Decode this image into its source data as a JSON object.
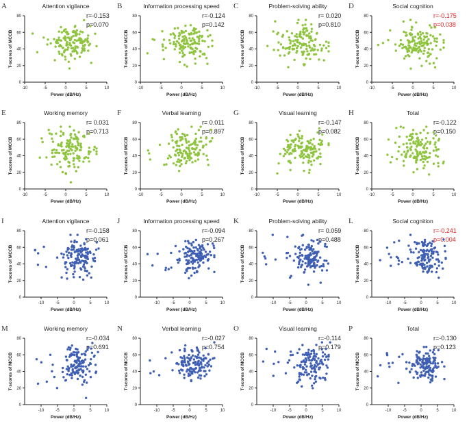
{
  "colors": {
    "green": "#8fc43f",
    "blue": "#3f5fb4",
    "text": "#222222",
    "significant": "#e02020"
  },
  "chart_data": [
    {
      "type": "scatter",
      "panel_label": "A",
      "title": "Attention vigilance",
      "stat_r": "r=-0.153",
      "stat_p": "p=0.070",
      "significant": false,
      "color": "green",
      "xlabel": "Power (dB/Hz)",
      "ylabel": "T-scores of MCCB",
      "xlim": [
        -10,
        10
      ],
      "ylim": [
        0,
        80
      ],
      "xticks": [
        -10,
        -5,
        0,
        5,
        10
      ],
      "yticks": [
        0,
        20,
        40,
        60,
        80
      ],
      "n_points": 140,
      "seed": 11
    },
    {
      "type": "scatter",
      "panel_label": "B",
      "title": "Information processing speed",
      "stat_r": "r=-0.124",
      "stat_p": "p=0.142",
      "significant": false,
      "color": "green",
      "xlabel": "Power (dB/Hz)",
      "ylabel": "T-scores of MCCB",
      "xlim": [
        -10,
        10
      ],
      "ylim": [
        0,
        80
      ],
      "xticks": [
        -10,
        -5,
        0,
        5,
        10
      ],
      "yticks": [
        0,
        20,
        40,
        60,
        80
      ],
      "n_points": 140,
      "seed": 12
    },
    {
      "type": "scatter",
      "panel_label": "C",
      "title": "Problem-solving ability",
      "stat_r": "r= 0.020",
      "stat_p": "p=0.810",
      "significant": false,
      "color": "green",
      "xlabel": "Power (dB/Hz)",
      "ylabel": "T-scores of MCCB",
      "xlim": [
        -10,
        10
      ],
      "ylim": [
        0,
        80
      ],
      "xticks": [
        -10,
        -5,
        0,
        5,
        10
      ],
      "yticks": [
        0,
        20,
        40,
        60,
        80
      ],
      "n_points": 140,
      "seed": 13
    },
    {
      "type": "scatter",
      "panel_label": "D",
      "title": "Social cognition",
      "stat_r": "r=-0.175",
      "stat_p": "p=0.038",
      "significant": true,
      "color": "green",
      "xlabel": "Power (dB/Hz)",
      "ylabel": "T-scores of MCCB",
      "xlim": [
        -10,
        10
      ],
      "ylim": [
        0,
        80
      ],
      "xticks": [
        -10,
        -5,
        0,
        5,
        10
      ],
      "yticks": [
        0,
        20,
        40,
        60,
        80
      ],
      "n_points": 140,
      "seed": 14
    },
    {
      "type": "scatter",
      "panel_label": "E",
      "title": "Working memory",
      "stat_r": "r= 0.031",
      "stat_p": "p=0.713",
      "significant": false,
      "color": "green",
      "xlabel": "Power (dB/Hz)",
      "ylabel": "T-scores of MCCB",
      "xlim": [
        -10,
        10
      ],
      "ylim": [
        0,
        80
      ],
      "xticks": [
        -10,
        -5,
        0,
        5,
        10
      ],
      "yticks": [
        0,
        20,
        40,
        60,
        80
      ],
      "n_points": 140,
      "seed": 15
    },
    {
      "type": "scatter",
      "panel_label": "F",
      "title": "Verbal learning",
      "stat_r": "r= 0.011",
      "stat_p": "p=0.897",
      "significant": false,
      "color": "green",
      "xlabel": "Power (dB/Hz)",
      "ylabel": "T-scores of MCCB",
      "xlim": [
        -10,
        10
      ],
      "ylim": [
        0,
        80
      ],
      "xticks": [
        -10,
        -5,
        0,
        5,
        10
      ],
      "yticks": [
        0,
        20,
        40,
        60,
        80
      ],
      "n_points": 140,
      "seed": 16
    },
    {
      "type": "scatter",
      "panel_label": "G",
      "title": "Visual learning",
      "stat_r": "r=-0.147",
      "stat_p": "p=0.082",
      "significant": false,
      "color": "green",
      "xlabel": "Power (dB/Hz)",
      "ylabel": "T-scores of MCCB",
      "xlim": [
        -10,
        10
      ],
      "ylim": [
        0,
        80
      ],
      "xticks": [
        -10,
        -5,
        0,
        5,
        10
      ],
      "yticks": [
        0,
        20,
        40,
        60,
        80
      ],
      "n_points": 140,
      "seed": 17
    },
    {
      "type": "scatter",
      "panel_label": "H",
      "title": "Total",
      "stat_r": "r=-0.122",
      "stat_p": "p=0.150",
      "significant": false,
      "color": "green",
      "xlabel": "Power (dB/Hz)",
      "ylabel": "T-scores of MCCB",
      "xlim": [
        -10,
        10
      ],
      "ylim": [
        0,
        80
      ],
      "xticks": [
        -10,
        -5,
        0,
        5,
        10
      ],
      "yticks": [
        0,
        20,
        40,
        60,
        80
      ],
      "n_points": 140,
      "seed": 18
    },
    {
      "type": "scatter",
      "panel_label": "I",
      "title": "Attention vigilance",
      "stat_r": "r=-0.158",
      "stat_p": "p=0.061",
      "significant": false,
      "color": "blue",
      "xlabel": "Power (dB/Hz)",
      "ylabel": "T-scores of MCCB",
      "xlim": [
        -15,
        10
      ],
      "ylim": [
        0,
        80
      ],
      "xticks": [
        -10,
        -5,
        0,
        5,
        10
      ],
      "yticks": [
        0,
        20,
        40,
        60,
        80
      ],
      "n_points": 140,
      "seed": 21
    },
    {
      "type": "scatter",
      "panel_label": "J",
      "title": "Information processing speed",
      "stat_r": "r=-0.094",
      "stat_p": "p=0.267",
      "significant": false,
      "color": "blue",
      "xlabel": "Power (dB/Hz)",
      "ylabel": "T-scores of MCCB",
      "xlim": [
        -15,
        10
      ],
      "ylim": [
        0,
        80
      ],
      "xticks": [
        -10,
        -5,
        0,
        5,
        10
      ],
      "yticks": [
        0,
        20,
        40,
        60,
        80
      ],
      "n_points": 140,
      "seed": 22
    },
    {
      "type": "scatter",
      "panel_label": "K",
      "title": "Problem-solving ability",
      "stat_r": "r= 0.059",
      "stat_p": "p=0.488",
      "significant": false,
      "color": "blue",
      "xlabel": "Power (dB/Hz)",
      "ylabel": "T-scores of MCCB",
      "xlim": [
        -15,
        10
      ],
      "ylim": [
        0,
        80
      ],
      "xticks": [
        -10,
        -5,
        0,
        5,
        10
      ],
      "yticks": [
        0,
        20,
        40,
        60,
        80
      ],
      "n_points": 140,
      "seed": 23
    },
    {
      "type": "scatter",
      "panel_label": "L",
      "title": "Social cognition",
      "stat_r": "r=-0.241",
      "stat_p": "p=0.004",
      "significant": true,
      "color": "blue",
      "xlabel": "Power (dB/Hz)",
      "ylabel": "T-scores of MCCB",
      "xlim": [
        -15,
        10
      ],
      "ylim": [
        0,
        80
      ],
      "xticks": [
        -10,
        -5,
        0,
        5,
        10
      ],
      "yticks": [
        0,
        20,
        40,
        60,
        80
      ],
      "n_points": 140,
      "seed": 24
    },
    {
      "type": "scatter",
      "panel_label": "M",
      "title": "Working memory",
      "stat_r": "r=-0.034",
      "stat_p": "p=0.691",
      "significant": false,
      "color": "blue",
      "xlabel": "Power (dB/Hz)",
      "ylabel": "T-scores of MCCB",
      "xlim": [
        -15,
        10
      ],
      "ylim": [
        0,
        80
      ],
      "xticks": [
        -10,
        -5,
        0,
        5,
        10
      ],
      "yticks": [
        0,
        20,
        40,
        60,
        80
      ],
      "n_points": 140,
      "seed": 25
    },
    {
      "type": "scatter",
      "panel_label": "N",
      "title": "Verbal learning",
      "stat_r": "r=-0.027",
      "stat_p": "p=0.754",
      "significant": false,
      "color": "blue",
      "xlabel": "Power (dB/Hz)",
      "ylabel": "T-scores of MCCB",
      "xlim": [
        -15,
        10
      ],
      "ylim": [
        0,
        80
      ],
      "xticks": [
        -10,
        -5,
        0,
        5,
        10
      ],
      "yticks": [
        0,
        20,
        40,
        60,
        80
      ],
      "n_points": 140,
      "seed": 26
    },
    {
      "type": "scatter",
      "panel_label": "O",
      "title": "Visual learning",
      "stat_r": "r=-0.114",
      "stat_p": "p=0.179",
      "significant": false,
      "color": "blue",
      "xlabel": "Power (dB/Hz)",
      "ylabel": "T-scores of MCCB",
      "xlim": [
        -15,
        10
      ],
      "ylim": [
        0,
        80
      ],
      "xticks": [
        -10,
        -5,
        0,
        5,
        10
      ],
      "yticks": [
        0,
        20,
        40,
        60,
        80
      ],
      "n_points": 140,
      "seed": 27
    },
    {
      "type": "scatter",
      "panel_label": "P",
      "title": "Total",
      "stat_r": "r=-0.130",
      "stat_p": "p=0.123",
      "significant": false,
      "color": "blue",
      "xlabel": "Power (dB/Hz)",
      "ylabel": "T-scores of MCCB",
      "xlim": [
        -15,
        10
      ],
      "ylim": [
        0,
        80
      ],
      "xticks": [
        -10,
        -5,
        0,
        5,
        10
      ],
      "yticks": [
        0,
        20,
        40,
        60,
        80
      ],
      "n_points": 140,
      "seed": 28
    }
  ]
}
